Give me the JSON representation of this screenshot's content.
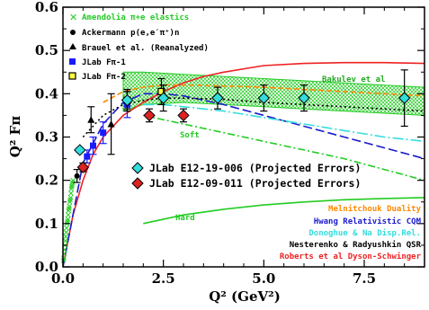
{
  "chart_data": {
    "type": "scatter",
    "xlabel": "Q² (GeV²)",
    "ylabel": "Q² Fπ",
    "xlim": [
      0,
      9
    ],
    "ylim": [
      0,
      0.6
    ],
    "xticks": [
      "0.0",
      "2.5",
      "5.0",
      "7.5"
    ],
    "xtick_values": [
      0,
      2.5,
      5.0,
      7.5
    ],
    "yticks": [
      "0.0",
      "0.1",
      "0.2",
      "0.3",
      "0.4",
      "0.5",
      "0.6"
    ],
    "ytick_values": [
      0,
      0.1,
      0.2,
      0.3,
      0.4,
      0.5,
      0.6
    ],
    "grid": false,
    "legend_top": [
      {
        "label": "Amendolia π+e elastics",
        "color": "#22cc22",
        "marker": "x"
      },
      {
        "label": "Ackermann p(e,e′π⁺)n",
        "color": "#000000",
        "marker": "circle"
      },
      {
        "label": "Brauel et al. (Reanalyzed)",
        "color": "#000000",
        "marker": "triangle"
      },
      {
        "label": "JLab Fπ-1",
        "color": "#1a1aff",
        "marker": "square"
      },
      {
        "label": "JLab Fπ-2",
        "color": "#000000",
        "marker": "square-yellow"
      }
    ],
    "legend_mid": [
      {
        "label": "JLab E12-19-006 (Projected Errors)",
        "color": "#33dddd",
        "marker": "diamond"
      },
      {
        "label": "JLab E12-09-011 (Projected Errors)",
        "color": "#dd2222",
        "marker": "diamond"
      }
    ],
    "annotations": [
      {
        "text": "Bakulev et al",
        "color": "#22aa22"
      },
      {
        "text": "Soft",
        "color": "#22cc22"
      },
      {
        "text": "Hard",
        "color": "#22cc22"
      }
    ],
    "curve_legend": [
      {
        "text": "Melnitchouk Duality",
        "color": "#ff8800"
      },
      {
        "text": "Hwang Relativistic CQM",
        "color": "#1a1acc"
      },
      {
        "text": "Donoghue & Na Disp.Rel.",
        "color": "#33dddd"
      },
      {
        "text": "Nesterenko & Radyushkin QSR",
        "color": "#000000"
      },
      {
        "text": "Roberts et al Dyson-Schwinger",
        "color": "#ee2222"
      }
    ],
    "series": [
      {
        "name": "Amendolia π+e elastics",
        "color": "#22cc22",
        "marker": "x",
        "x": [
          0.015,
          0.02,
          0.03,
          0.04,
          0.05,
          0.06,
          0.07,
          0.08,
          0.09,
          0.1,
          0.11,
          0.12,
          0.13,
          0.14,
          0.15,
          0.16,
          0.17,
          0.18,
          0.19,
          0.2,
          0.21,
          0.22,
          0.23,
          0.24,
          0.25
        ],
        "y": [
          0.015,
          0.02,
          0.03,
          0.04,
          0.05,
          0.06,
          0.07,
          0.08,
          0.09,
          0.1,
          0.105,
          0.11,
          0.12,
          0.13,
          0.135,
          0.14,
          0.15,
          0.155,
          0.16,
          0.17,
          0.18,
          0.185,
          0.19,
          0.195,
          0.2
        ]
      },
      {
        "name": "Ackermann p(e,e′π⁺)n",
        "color": "#000000",
        "marker": "circle",
        "x": [
          0.35
        ],
        "y": [
          0.21
        ],
        "err": [
          0.015
        ]
      },
      {
        "name": "Brauel et al. (Reanalyzed)",
        "color": "#000000",
        "marker": "triangle",
        "x": [
          0.7,
          1.2
        ],
        "y": [
          0.34,
          0.33
        ],
        "err": [
          0.03,
          0.07
        ]
      },
      {
        "name": "JLab Fπ-1",
        "color": "#1a1aff",
        "marker": "square",
        "x": [
          0.6,
          0.75,
          1.0,
          1.6
        ],
        "y": [
          0.255,
          0.28,
          0.31,
          0.375
        ],
        "err": [
          0.015,
          0.02,
          0.025,
          0.03
        ]
      },
      {
        "name": "JLab Fπ-2",
        "color": "#000000",
        "marker": "square-yellow",
        "x": [
          1.6,
          2.45
        ],
        "y": [
          0.385,
          0.405
        ],
        "err": [
          0.02,
          0.03
        ]
      },
      {
        "name": "JLab E12-19-006 (Projected Errors)",
        "color": "#33dddd",
        "marker": "diamond",
        "x": [
          0.42,
          1.6,
          2.5,
          3.85,
          5.0,
          6.0,
          8.5
        ],
        "y": [
          0.27,
          0.385,
          0.39,
          0.39,
          0.39,
          0.39,
          0.39
        ],
        "err": [
          0.005,
          0.025,
          0.03,
          0.025,
          0.03,
          0.03,
          0.065
        ]
      },
      {
        "name": "JLab E12-09-011 (Projected Errors)",
        "color": "#dd2222",
        "marker": "diamond",
        "x": [
          0.5,
          2.15,
          3.0
        ],
        "y": [
          0.23,
          0.35,
          0.35
        ],
        "err": [
          0.01,
          0.015,
          0.015
        ]
      }
    ],
    "curves": [
      {
        "name": "Roberts et al Dyson-Schwinger",
        "color": "#ee2222",
        "dash": "",
        "x": [
          0,
          0.25,
          0.5,
          0.75,
          1.0,
          1.5,
          2.0,
          2.5,
          3.0,
          3.5,
          4.0,
          5.0,
          6.0,
          7.0,
          8.0,
          9.0
        ],
        "y": [
          0,
          0.12,
          0.2,
          0.26,
          0.3,
          0.35,
          0.38,
          0.405,
          0.425,
          0.44,
          0.45,
          0.465,
          0.47,
          0.472,
          0.472,
          0.47
        ]
      },
      {
        "name": "Melnitchouk Duality",
        "color": "#ff8800",
        "dash": "6,3",
        "x": [
          1.0,
          1.5,
          2.0,
          2.5,
          3.0,
          4.0,
          5.0,
          6.0,
          7.0,
          8.0,
          9.0
        ],
        "y": [
          0.38,
          0.405,
          0.415,
          0.42,
          0.42,
          0.418,
          0.415,
          0.41,
          0.405,
          0.4,
          0.395
        ]
      },
      {
        "name": "Hwang Relativistic CQM",
        "color": "#1a1acc",
        "dash": "10,4",
        "x": [
          0,
          0.5,
          1.0,
          1.5,
          2.0,
          2.5,
          3.0,
          4.0,
          5.0,
          6.0,
          7.0,
          8.0,
          9.0
        ],
        "y": [
          0,
          0.24,
          0.33,
          0.38,
          0.4,
          0.4,
          0.395,
          0.375,
          0.35,
          0.325,
          0.3,
          0.275,
          0.25
        ]
      },
      {
        "name": "Donoghue & Na Disp.Rel.",
        "color": "#33dddd",
        "dash": "12,3,2,3",
        "x": [
          2.0,
          2.5,
          3.0,
          3.5,
          4.0,
          5.0,
          6.0,
          7.0,
          8.0,
          9.0
        ],
        "y": [
          0.375,
          0.375,
          0.37,
          0.365,
          0.36,
          0.345,
          0.33,
          0.315,
          0.3,
          0.29
        ]
      },
      {
        "name": "Nesterenko & Radyushkin QSR",
        "color": "#000000",
        "dash": "2,3",
        "x": [
          0.5,
          1.0,
          1.5,
          2.0,
          2.5,
          3.0,
          4.0,
          5.0,
          6.0,
          7.0,
          8.0,
          9.0
        ],
        "y": [
          0.3,
          0.35,
          0.375,
          0.385,
          0.39,
          0.39,
          0.387,
          0.38,
          0.375,
          0.37,
          0.365,
          0.36
        ]
      },
      {
        "name": "Soft",
        "color": "#22cc22",
        "dash": "8,3,2,3",
        "x": [
          2.0,
          3.0,
          4.0,
          5.0,
          6.0,
          7.0,
          8.0,
          9.0
        ],
        "y": [
          0.35,
          0.33,
          0.31,
          0.29,
          0.27,
          0.25,
          0.225,
          0.2
        ]
      },
      {
        "name": "Hard",
        "color": "#22cc22",
        "dash": "",
        "x": [
          2.0,
          3.0,
          4.0,
          5.0,
          6.0,
          7.0,
          8.0,
          9.0
        ],
        "y": [
          0.1,
          0.12,
          0.133,
          0.143,
          0.15,
          0.155,
          0.158,
          0.16
        ]
      }
    ],
    "band": {
      "name": "Bakulev et al",
      "color": "#22cc22",
      "x": [
        1.5,
        2.0,
        3.0,
        4.0,
        5.0,
        6.0,
        7.0,
        8.0,
        9.0
      ],
      "upper": [
        0.45,
        0.45,
        0.445,
        0.44,
        0.435,
        0.43,
        0.425,
        0.42,
        0.415
      ],
      "lower": [
        0.36,
        0.375,
        0.38,
        0.375,
        0.37,
        0.365,
        0.36,
        0.355,
        0.35
      ]
    }
  }
}
